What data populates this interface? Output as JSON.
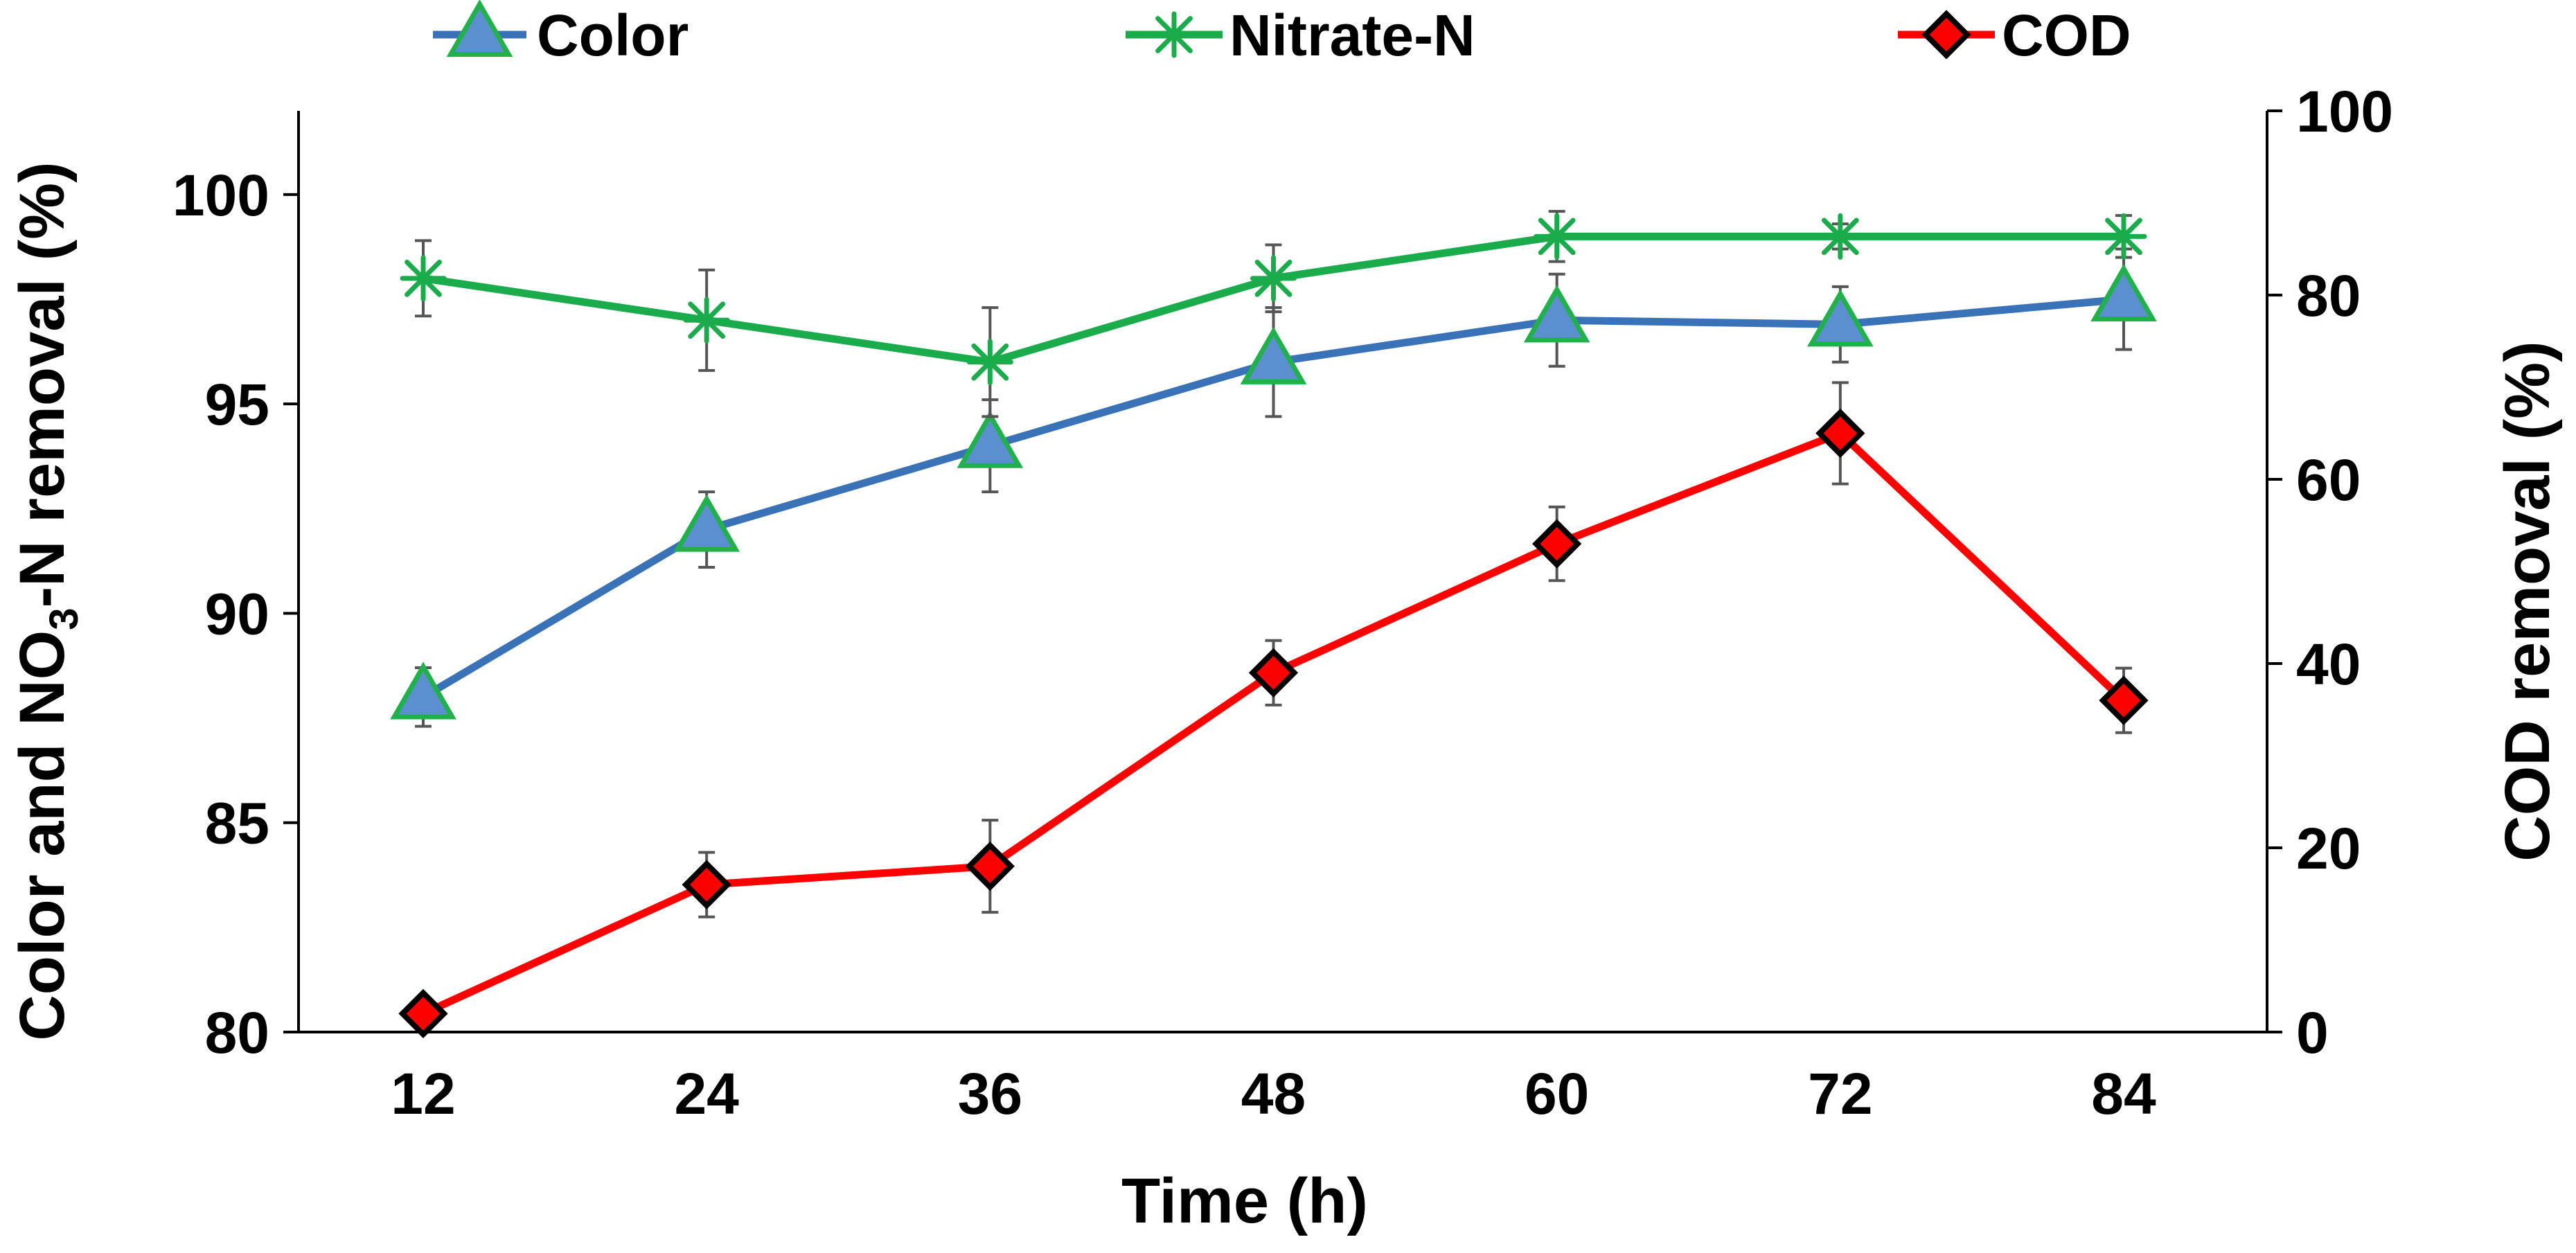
{
  "chart_data": {
    "type": "line",
    "x": [
      12,
      24,
      36,
      48,
      60,
      72,
      84
    ],
    "xlabel": "Time (h)",
    "ylabel_left": {
      "pre": "Color and NO",
      "sub": "3",
      "post": "-N removal (%)"
    },
    "ylabel_right": "COD removal (%)",
    "y_left_lim": [
      80,
      102
    ],
    "y_left_ticks": [
      80,
      85,
      90,
      95,
      100
    ],
    "y_right_lim": [
      0,
      100
    ],
    "y_right_ticks": [
      0,
      20,
      40,
      60,
      80,
      100
    ],
    "legend_position": "top",
    "series": [
      {
        "name": "Color",
        "axis": "left",
        "marker": "triangle",
        "line_color": "#3a72b8",
        "marker_fill": "#5b8fd0",
        "marker_edge": "#21b14b",
        "values": [
          88.0,
          92.0,
          94.0,
          96.0,
          97.0,
          96.9,
          97.5
        ],
        "errors": [
          0.7,
          0.9,
          1.1,
          1.3,
          1.1,
          0.9,
          1.2
        ]
      },
      {
        "name": "Nitrate-N",
        "axis": "left",
        "marker": "asterisk",
        "line_color": "#1aab4b",
        "marker_fill": "#1aab4b",
        "marker_edge": "#1aab4b",
        "values": [
          98.0,
          97.0,
          96.0,
          98.0,
          99.0,
          99.0,
          99.0
        ],
        "errors": [
          0.9,
          1.2,
          1.3,
          0.8,
          0.6,
          0.3,
          0.5
        ]
      },
      {
        "name": "COD",
        "axis": "right",
        "marker": "diamond",
        "line_color": "#ff0000",
        "marker_fill": "#ff0000",
        "marker_edge": "#000000",
        "values": [
          2,
          16,
          18,
          39,
          53,
          65,
          36
        ],
        "errors": [
          1,
          3.5,
          5,
          3.5,
          4,
          5.5,
          3.5
        ]
      }
    ]
  }
}
